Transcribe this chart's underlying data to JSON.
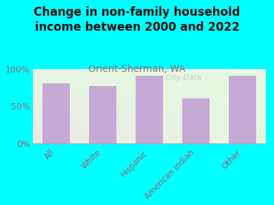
{
  "title": "Change in non-family household\nincome between 2000 and 2022",
  "subtitle": "Orient-Sherman, WA",
  "categories": [
    "All",
    "White",
    "Hispanic",
    "American Indian",
    "Other"
  ],
  "values": [
    80,
    77,
    90,
    60,
    90
  ],
  "bar_color": "#c4aad4",
  "background_color": "#00ffff",
  "title_fontsize": 12,
  "subtitle_fontsize": 10,
  "subtitle_color": "#996677",
  "tick_color": "#996677",
  "ylim": [
    0,
    100
  ],
  "yticks": [
    0,
    50,
    100
  ],
  "ytick_labels": [
    "0%",
    "50%",
    "100%"
  ],
  "watermark": "City-Data"
}
